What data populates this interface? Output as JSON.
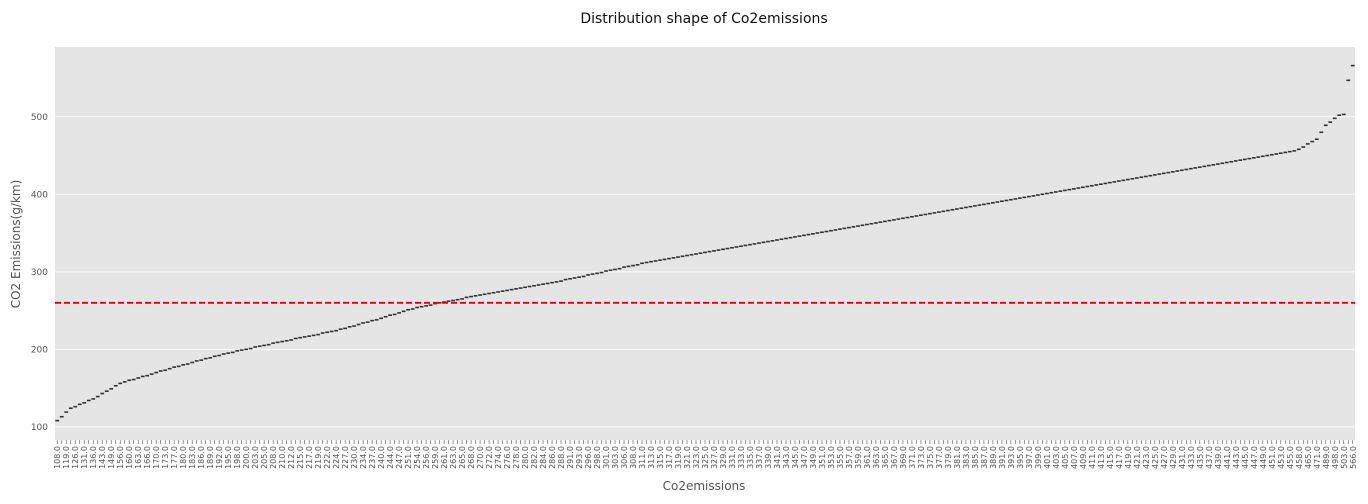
{
  "chart_data": {
    "type": "box",
    "title": "Distribution shape of Co2emissions",
    "xlabel": "Co2emissions",
    "ylabel": "CO2 Emissions(g/km)",
    "ylim": [
      83,
      590
    ],
    "yticks": [
      100,
      200,
      300,
      400,
      500
    ],
    "grid": true,
    "reference_line": {
      "y": 260,
      "style": "dashed",
      "color": "#dd0000"
    },
    "colors": {
      "panel": "#e5e5e5",
      "grid": "#ffffff",
      "median": "#333333"
    },
    "categories": [],
    "values": []
  }
}
